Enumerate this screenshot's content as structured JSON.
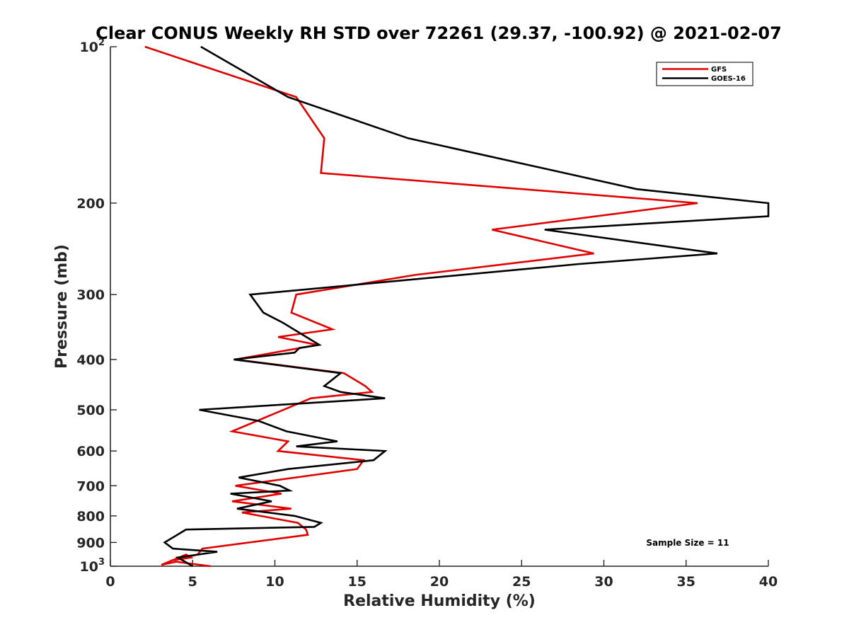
{
  "chart_data": {
    "type": "line",
    "title": "Clear CONUS Weekly RH STD over 72261 (29.37, -100.92) @ 2021-02-07",
    "xlabel": "Relative Humidity (%)",
    "ylabel": "Pressure (mb)",
    "xlim": [
      0,
      40
    ],
    "ylim": [
      100,
      1000
    ],
    "y_scale": "log",
    "y_reversed": true,
    "x_ticks": [
      0,
      5,
      10,
      15,
      20,
      25,
      30,
      35,
      40
    ],
    "y_ticks": [
      {
        "value": 100,
        "base": "10",
        "exp": "2"
      },
      {
        "value": 200,
        "label": "200"
      },
      {
        "value": 300,
        "label": "300"
      },
      {
        "value": 400,
        "label": "400"
      },
      {
        "value": 500,
        "label": "500"
      },
      {
        "value": 600,
        "label": "600"
      },
      {
        "value": 700,
        "label": "700"
      },
      {
        "value": 800,
        "label": "800"
      },
      {
        "value": 900,
        "label": "900"
      },
      {
        "value": 1000,
        "base": "10",
        "exp": "3"
      }
    ],
    "grid": false,
    "legend_position": "top-right",
    "series": [
      {
        "name": "GFS",
        "color": "#e00000",
        "points": [
          [
            2.1,
            100
          ],
          [
            11.3,
            125
          ],
          [
            13.0,
            150
          ],
          [
            12.8,
            175
          ],
          [
            35.7,
            200
          ],
          [
            23.2,
            225
          ],
          [
            29.4,
            250
          ],
          [
            18.5,
            275
          ],
          [
            11.3,
            300
          ],
          [
            11.0,
            325
          ],
          [
            13.5,
            350
          ],
          [
            10.2,
            362
          ],
          [
            12.6,
            375
          ],
          [
            7.6,
            400
          ],
          [
            14.2,
            425
          ],
          [
            15.5,
            450
          ],
          [
            15.9,
            462
          ],
          [
            12.2,
            475
          ],
          [
            7.4,
            550
          ],
          [
            10.8,
            575
          ],
          [
            10.2,
            600
          ],
          [
            15.4,
            625
          ],
          [
            15.0,
            650
          ],
          [
            7.6,
            700
          ],
          [
            10.4,
            725
          ],
          [
            7.4,
            750
          ],
          [
            11.0,
            775
          ],
          [
            8.0,
            788
          ],
          [
            11.4,
            825
          ],
          [
            11.9,
            850
          ],
          [
            12.0,
            870
          ],
          [
            5.6,
            925
          ],
          [
            5.3,
            950
          ],
          [
            3.7,
            975
          ],
          [
            4.9,
            962
          ],
          [
            4.6,
            950
          ],
          [
            3.1,
            994
          ],
          [
            4.0,
            980
          ],
          [
            6.1,
            1000
          ]
        ]
      },
      {
        "name": "GOES-16",
        "color": "#000000",
        "points": [
          [
            5.5,
            100
          ],
          [
            10.8,
            125
          ],
          [
            18.1,
            150
          ],
          [
            27.6,
            175
          ],
          [
            32.0,
            188
          ],
          [
            40.0,
            200
          ],
          [
            40.0,
            212
          ],
          [
            26.4,
            225
          ],
          [
            36.9,
            250
          ],
          [
            28.5,
            262
          ],
          [
            8.5,
            300
          ],
          [
            9.3,
            325
          ],
          [
            10.5,
            340
          ],
          [
            12.7,
            375
          ],
          [
            11.5,
            380
          ],
          [
            11.2,
            388
          ],
          [
            7.5,
            400
          ],
          [
            14.0,
            425
          ],
          [
            13.0,
            450
          ],
          [
            14.0,
            462
          ],
          [
            16.7,
            475
          ],
          [
            5.4,
            500
          ],
          [
            9.0,
            525
          ],
          [
            10.7,
            550
          ],
          [
            13.8,
            575
          ],
          [
            11.3,
            588
          ],
          [
            16.7,
            600
          ],
          [
            16.0,
            625
          ],
          [
            10.8,
            650
          ],
          [
            7.8,
            675
          ],
          [
            10.3,
            700
          ],
          [
            10.9,
            715
          ],
          [
            7.3,
            725
          ],
          [
            9.8,
            750
          ],
          [
            7.7,
            775
          ],
          [
            11.2,
            800
          ],
          [
            12.8,
            825
          ],
          [
            12.4,
            840
          ],
          [
            4.6,
            850
          ],
          [
            3.3,
            900
          ],
          [
            3.8,
            925
          ],
          [
            6.5,
            938
          ],
          [
            4.1,
            962
          ],
          [
            5.0,
            1000
          ]
        ]
      }
    ],
    "annotations": [
      {
        "text": "Sample Size = 11"
      }
    ]
  }
}
